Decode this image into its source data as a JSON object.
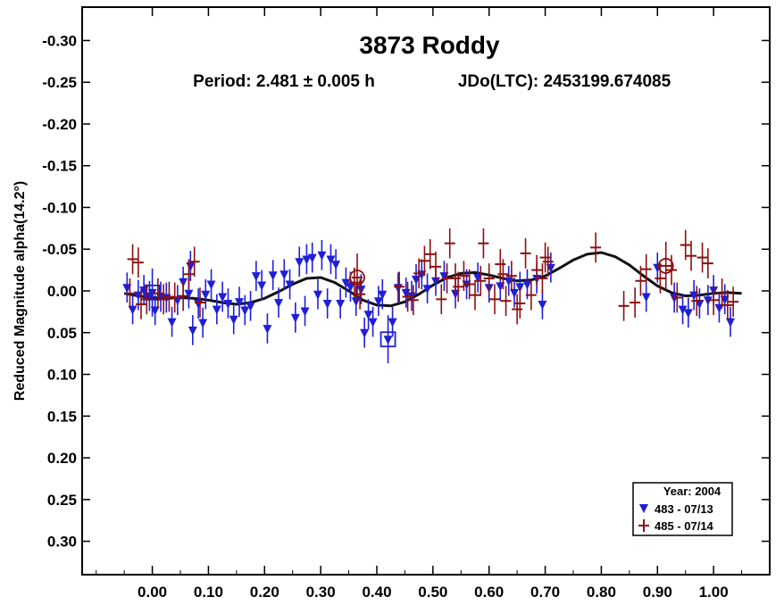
{
  "chart_data": {
    "type": "scatter",
    "title": "3873 Roddy",
    "subtitle_period": "Period: 2.481 ± 0.005 h",
    "subtitle_epoch": "JDo(LTC): 2453199.674085",
    "xlabel": "",
    "ylabel": "Reduced Magnitude alpha(14.2°)",
    "xlim": [
      -0.125,
      1.1
    ],
    "ylim": [
      -0.34,
      0.34
    ],
    "y_inverted": true,
    "x_ticks": [
      "0.00",
      "0.10",
      "0.20",
      "0.30",
      "0.40",
      "0.50",
      "0.60",
      "0.70",
      "0.80",
      "0.90",
      "1.00"
    ],
    "x_tick_values": [
      0,
      0.1,
      0.2,
      0.3,
      0.4,
      0.5,
      0.6,
      0.7,
      0.8,
      0.9,
      1.0
    ],
    "y_ticks": [
      "-0.30",
      "-0.25",
      "-0.20",
      "-0.15",
      "-0.10",
      "-0.05",
      "0.00",
      "0.05",
      "0.10",
      "0.15",
      "0.20",
      "0.25",
      "0.30"
    ],
    "y_tick_values": [
      -0.3,
      -0.25,
      -0.2,
      -0.15,
      -0.1,
      -0.05,
      0.0,
      0.05,
      0.1,
      0.15,
      0.2,
      0.25,
      0.3
    ],
    "error_bar": 0.018,
    "legend": {
      "title": "Year: 2004",
      "placement": "bottom-right",
      "entries": [
        "483 - 07/13",
        "485 - 07/14"
      ]
    },
    "series": [
      {
        "name": "483 - 07/13",
        "marker": "triangle-down",
        "color": "#1f1fd6",
        "points": [
          [
            -0.045,
            -0.004
          ],
          [
            -0.035,
            0.022
          ],
          [
            -0.025,
            0.005
          ],
          [
            -0.015,
            -0.001
          ],
          [
            -0.005,
            0.006
          ],
          [
            0.005,
            0.023
          ],
          [
            0.015,
            0.007
          ],
          [
            0.025,
            0.008
          ],
          [
            0.035,
            0.037
          ],
          [
            0.045,
            0.011
          ],
          [
            0.055,
            -0.011
          ],
          [
            0.065,
            0.003
          ],
          [
            0.068,
            -0.03
          ],
          [
            0.072,
            0.047
          ],
          [
            0.082,
            0.015
          ],
          [
            0.09,
            0.038
          ],
          [
            0.095,
            0.004
          ],
          [
            0.105,
            -0.008
          ],
          [
            0.115,
            0.022
          ],
          [
            0.125,
            0.007
          ],
          [
            0.135,
            0.015
          ],
          [
            0.145,
            0.034
          ],
          [
            0.155,
            0.013
          ],
          [
            0.165,
            0.023
          ],
          [
            0.175,
            0.018
          ],
          [
            0.185,
            -0.018
          ],
          [
            0.195,
            -0.007
          ],
          [
            0.205,
            0.045
          ],
          [
            0.215,
            -0.019
          ],
          [
            0.225,
            0.014
          ],
          [
            0.235,
            -0.02
          ],
          [
            0.245,
            -0.008
          ],
          [
            0.255,
            0.032
          ],
          [
            0.262,
            -0.035
          ],
          [
            0.272,
            0.024
          ],
          [
            0.275,
            -0.038
          ],
          [
            0.285,
            -0.04
          ],
          [
            0.295,
            0.004
          ],
          [
            0.302,
            -0.043
          ],
          [
            0.312,
            0.015
          ],
          [
            0.318,
            -0.038
          ],
          [
            0.327,
            -0.032
          ],
          [
            0.335,
            0.015
          ],
          [
            0.345,
            -0.01
          ],
          [
            0.353,
            -0.005
          ],
          [
            0.363,
            0.012
          ],
          [
            0.372,
            -0.002
          ],
          [
            0.378,
            0.05
          ],
          [
            0.385,
            0.028
          ],
          [
            0.393,
            0.037
          ],
          [
            0.403,
            0.012
          ],
          [
            0.41,
            0.004
          ],
          [
            0.428,
            0.037
          ],
          [
            0.438,
            -0.004
          ],
          [
            0.452,
            0.002
          ],
          [
            0.462,
            0.006
          ],
          [
            0.47,
            -0.014
          ],
          [
            0.48,
            -0.02
          ],
          [
            0.49,
            -0.003
          ],
          [
            0.505,
            -0.012
          ],
          [
            0.52,
            -0.018
          ],
          [
            0.54,
            0.003
          ],
          [
            0.56,
            -0.008
          ],
          [
            0.58,
            -0.016
          ],
          [
            0.6,
            -0.004
          ],
          [
            0.62,
            -0.006
          ],
          [
            0.635,
            -0.012
          ],
          [
            0.645,
            0.002
          ],
          [
            0.655,
            -0.005
          ],
          [
            0.668,
            -0.008
          ],
          [
            0.685,
            -0.015
          ],
          [
            0.695,
            0.016
          ],
          [
            0.71,
            -0.028
          ],
          [
            0.88,
            0.007
          ],
          [
            0.9,
            -0.028
          ],
          [
            0.93,
            0.008
          ],
          [
            0.945,
            0.022
          ],
          [
            0.955,
            0.026
          ],
          [
            0.965,
            0.005
          ],
          [
            0.975,
            0.015
          ],
          [
            0.99,
            0.011
          ],
          [
            1.0,
            -0.001
          ],
          [
            1.01,
            0.02
          ],
          [
            1.02,
            0.01
          ],
          [
            1.03,
            0.037
          ]
        ],
        "highlight": [
          [
            0.0,
            0.002
          ],
          [
            0.42,
            0.058
          ]
        ]
      },
      {
        "name": "485 - 07/14",
        "marker": "plus",
        "color": "#8b1010",
        "points": [
          [
            -0.04,
            0.003
          ],
          [
            -0.035,
            -0.038
          ],
          [
            -0.025,
            -0.034
          ],
          [
            -0.02,
            0.016
          ],
          [
            -0.01,
            0.01
          ],
          [
            0.01,
            0.003
          ],
          [
            0.02,
            0.01
          ],
          [
            0.03,
            0.007
          ],
          [
            0.04,
            0.008
          ],
          [
            0.055,
            0.006
          ],
          [
            0.065,
            -0.02
          ],
          [
            0.075,
            -0.035
          ],
          [
            0.085,
            0.014
          ],
          [
            0.36,
            -0.01
          ],
          [
            0.37,
            0.004
          ],
          [
            0.44,
            -0.005
          ],
          [
            0.455,
            0.007
          ],
          [
            0.465,
            0.011
          ],
          [
            0.475,
            -0.021
          ],
          [
            0.485,
            -0.036
          ],
          [
            0.495,
            -0.044
          ],
          [
            0.505,
            -0.029
          ],
          [
            0.515,
            0.01
          ],
          [
            0.525,
            -0.015
          ],
          [
            0.53,
            -0.057
          ],
          [
            0.54,
            -0.015
          ],
          [
            0.545,
            -0.005
          ],
          [
            0.555,
            -0.018
          ],
          [
            0.565,
            -0.008
          ],
          [
            0.575,
            0.005
          ],
          [
            0.585,
            -0.012
          ],
          [
            0.59,
            -0.057
          ],
          [
            0.6,
            -0.015
          ],
          [
            0.61,
            0.01
          ],
          [
            0.62,
            -0.032
          ],
          [
            0.625,
            -0.02
          ],
          [
            0.63,
            0.012
          ],
          [
            0.64,
            -0.018
          ],
          [
            0.65,
            0.022
          ],
          [
            0.655,
            0.015
          ],
          [
            0.665,
            -0.045
          ],
          [
            0.675,
            0.005
          ],
          [
            0.685,
            -0.025
          ],
          [
            0.695,
            -0.015
          ],
          [
            0.7,
            -0.04
          ],
          [
            0.705,
            -0.035
          ],
          [
            0.79,
            -0.052
          ],
          [
            0.84,
            0.018
          ],
          [
            0.86,
            0.014
          ],
          [
            0.87,
            -0.012
          ],
          [
            0.88,
            -0.026
          ],
          [
            0.905,
            -0.015
          ],
          [
            0.925,
            -0.025
          ],
          [
            0.935,
            0.008
          ],
          [
            0.95,
            -0.055
          ],
          [
            0.96,
            -0.042
          ],
          [
            0.97,
            0.012
          ],
          [
            0.98,
            -0.04
          ],
          [
            0.99,
            -0.033
          ],
          [
            1.0,
            0.011
          ],
          [
            1.015,
            0.003
          ],
          [
            1.025,
            0.017
          ],
          [
            1.035,
            0.013
          ]
        ],
        "highlight": [
          [
            0.365,
            -0.016
          ],
          [
            0.915,
            -0.03
          ]
        ]
      }
    ],
    "fit_curve": [
      [
        -0.05,
        0.003
      ],
      [
        -0.025,
        0.006
      ],
      [
        0.0,
        0.008
      ],
      [
        0.025,
        0.009
      ],
      [
        0.05,
        0.008
      ],
      [
        0.075,
        0.009
      ],
      [
        0.1,
        0.011
      ],
      [
        0.125,
        0.014
      ],
      [
        0.15,
        0.016
      ],
      [
        0.175,
        0.014
      ],
      [
        0.2,
        0.009
      ],
      [
        0.225,
        0.001
      ],
      [
        0.25,
        -0.008
      ],
      [
        0.275,
        -0.015
      ],
      [
        0.3,
        -0.016
      ],
      [
        0.325,
        -0.01
      ],
      [
        0.35,
        0.0
      ],
      [
        0.375,
        0.011
      ],
      [
        0.4,
        0.017
      ],
      [
        0.425,
        0.018
      ],
      [
        0.45,
        0.013
      ],
      [
        0.475,
        0.004
      ],
      [
        0.5,
        -0.007
      ],
      [
        0.525,
        -0.016
      ],
      [
        0.55,
        -0.021
      ],
      [
        0.575,
        -0.022
      ],
      [
        0.6,
        -0.019
      ],
      [
        0.625,
        -0.015
      ],
      [
        0.65,
        -0.012
      ],
      [
        0.675,
        -0.013
      ],
      [
        0.7,
        -0.018
      ],
      [
        0.725,
        -0.027
      ],
      [
        0.75,
        -0.037
      ],
      [
        0.775,
        -0.044
      ],
      [
        0.8,
        -0.046
      ],
      [
        0.825,
        -0.041
      ],
      [
        0.85,
        -0.031
      ],
      [
        0.875,
        -0.018
      ],
      [
        0.9,
        -0.006
      ],
      [
        0.925,
        0.002
      ],
      [
        0.95,
        0.006
      ],
      [
        0.975,
        0.005
      ],
      [
        1.0,
        0.003
      ],
      [
        1.025,
        0.002
      ],
      [
        1.05,
        0.003
      ]
    ]
  }
}
